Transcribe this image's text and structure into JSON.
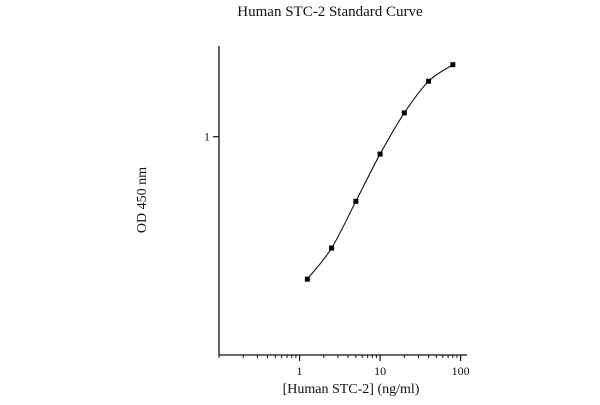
{
  "chart_data": {
    "type": "line",
    "title": "Human STC-2 Standard Curve",
    "xlabel": "[Human STC-2] (ng/ml)",
    "ylabel": "OD 450 nm",
    "xscale": "log",
    "yscale": "log",
    "xlim": [
      0.1,
      120
    ],
    "ylim": [
      0.15,
      2.2
    ],
    "x_ticks": [
      {
        "value": 1,
        "label": "1"
      },
      {
        "value": 10,
        "label": "10"
      },
      {
        "value": 100,
        "label": "100"
      }
    ],
    "y_ticks": [
      {
        "value": 1,
        "label": "1"
      }
    ],
    "grid": false,
    "legend": "none",
    "series": [
      {
        "x": [
          1.25,
          2.5,
          5,
          10,
          20,
          40,
          80
        ],
        "y": [
          0.29,
          0.38,
          0.57,
          0.86,
          1.23,
          1.62,
          1.87
        ]
      }
    ],
    "colors": {
      "line": "#111111",
      "marker": "#000000",
      "axis": "#111111"
    }
  }
}
